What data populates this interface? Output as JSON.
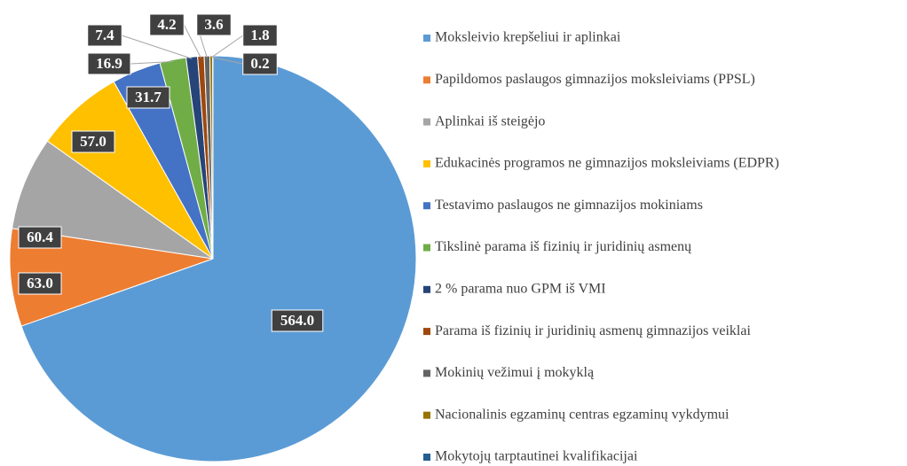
{
  "chart_data": {
    "type": "pie",
    "categories": [
      "Moksleivio krepšeliui ir aplinkai",
      "Papildomos paslaugos gimnazijos moksleiviams (PPSL)",
      "Aplinkai iš steigėjo",
      "Edukacinės programos ne gimnazijos moksleiviams (EDPR)",
      "Testavimo paslaugos ne gimnazijos mokiniams",
      "Tikslinė parama iš fizinių ir juridinių asmenų",
      "2 % parama nuo GPM iš VMI",
      "Parama iš fizinių ir juridinių asmenų gimnazijos veiklai",
      "Mokinių vežimui į mokyklą",
      "Nacionalinis egzaminų centras egzaminų vykdymui",
      "Mokytojų tarptautinei kvalifikacijai"
    ],
    "values": [
      564,
      63,
      60.4,
      57,
      31.7,
      16.9,
      7.4,
      4.2,
      3.6,
      1.8,
      0.2
    ],
    "value_labels": [
      "564.0",
      "63.0",
      "60.4",
      "57.0",
      "31.7",
      "16.9",
      "7.4",
      "4.2",
      "3.6",
      "1.8",
      "0.2"
    ],
    "colors": [
      "#5b9bd5",
      "#ed7d31",
      "#a5a5a5",
      "#ffc000",
      "#4472c4",
      "#70ad47",
      "#264478",
      "#9e480e",
      "#636363",
      "#997300",
      "#255e91"
    ],
    "legend": "right"
  }
}
